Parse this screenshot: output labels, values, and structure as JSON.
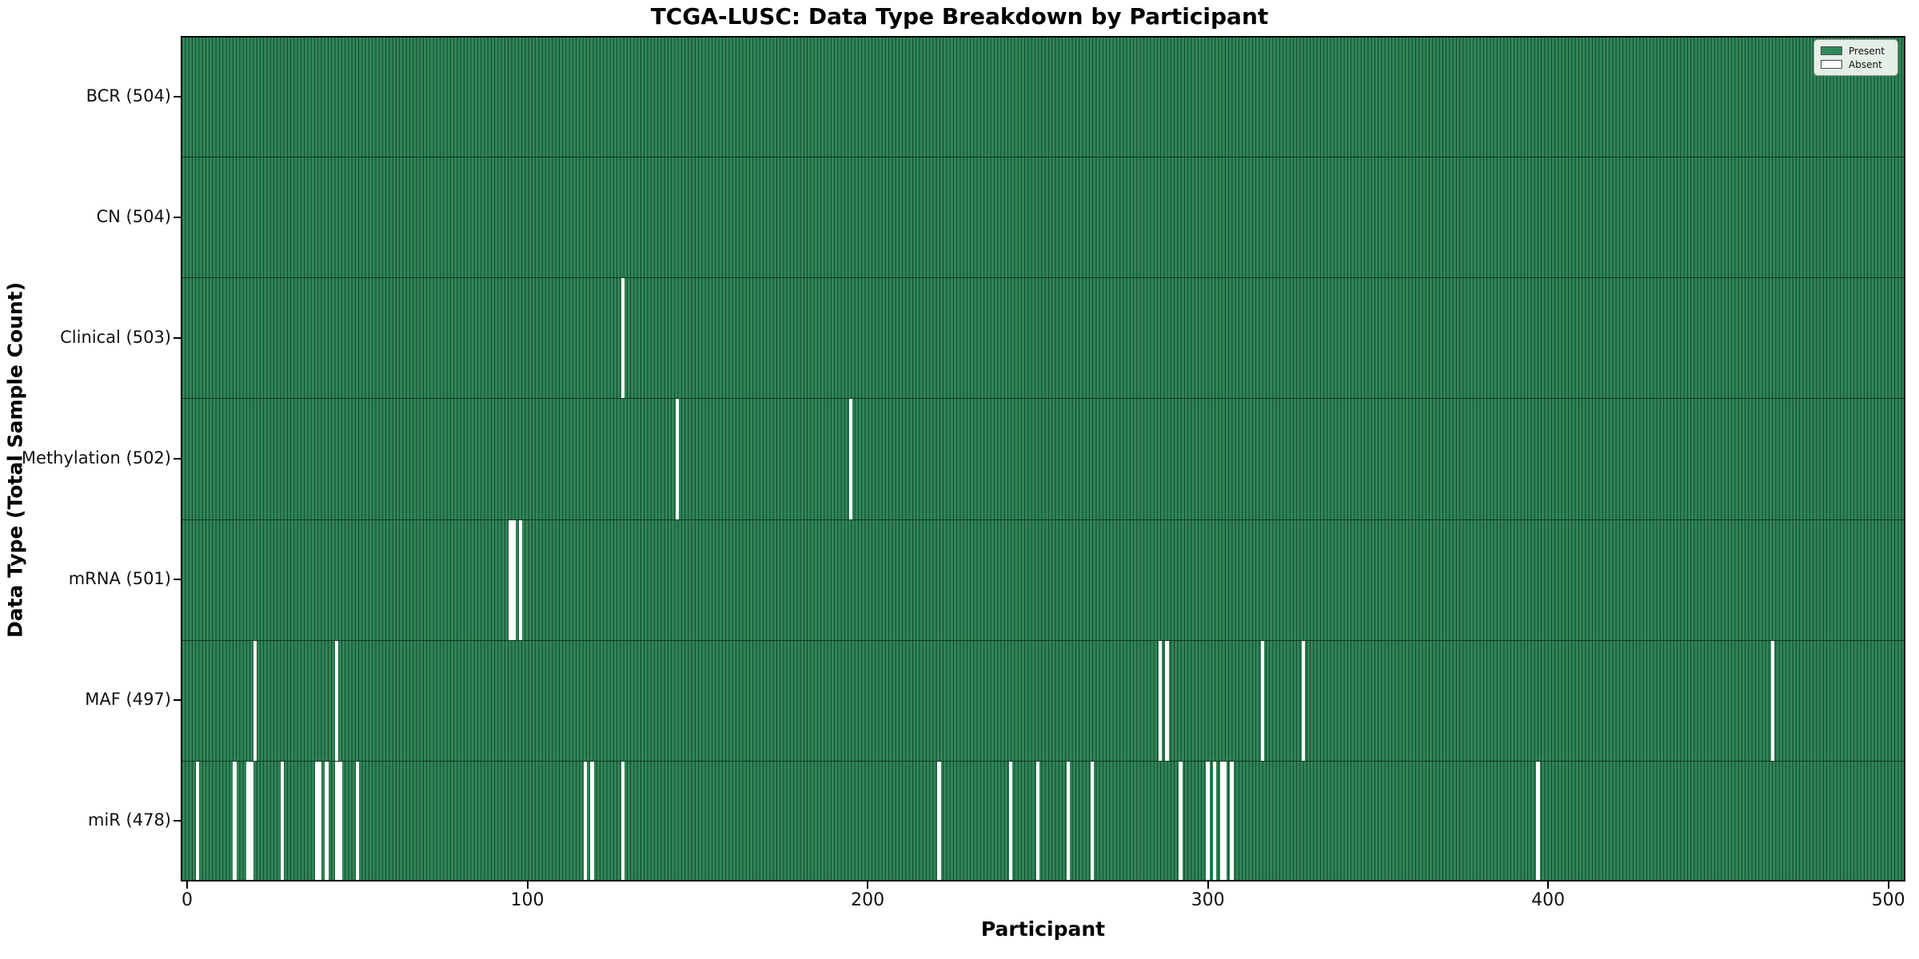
{
  "chart_data": {
    "type": "heatmap",
    "title": "TCGA-LUSC: Data Type Breakdown by Participant",
    "xlabel": "Participant",
    "ylabel": "Data Type (Total Sample Count)",
    "n_participants": 504,
    "x_ticks": [
      0,
      100,
      200,
      300,
      400,
      500
    ],
    "xlim": [
      0,
      504
    ],
    "grid": false,
    "legend_position": "upper right",
    "legend": [
      {
        "label": "Present",
        "color": "#2e8b57"
      },
      {
        "label": "Absent",
        "color": "#ffffff"
      }
    ],
    "colors": {
      "present": "#2f8757",
      "absent": "#ffffff",
      "bar_edge": "#16402a"
    },
    "rows": [
      {
        "label": "BCR (504)",
        "name": "BCR",
        "count": 504,
        "absent": []
      },
      {
        "label": "CN (504)",
        "name": "CN",
        "count": 504,
        "absent": []
      },
      {
        "label": "Clinical (503)",
        "name": "Clinical",
        "count": 503,
        "absent": [
          128
        ]
      },
      {
        "label": "Methylation (502)",
        "name": "Methylation",
        "count": 502,
        "absent": [
          144,
          195
        ]
      },
      {
        "label": "mRNA (501)",
        "name": "mRNA",
        "count": 501,
        "absent": [
          95,
          96,
          98
        ]
      },
      {
        "label": "MAF (497)",
        "name": "MAF",
        "count": 497,
        "absent": [
          20,
          44,
          286,
          288,
          316,
          328,
          466
        ]
      },
      {
        "label": "miR (478)",
        "name": "miR",
        "count": 478,
        "absent": [
          3,
          14,
          18,
          19,
          28,
          38,
          39,
          41,
          44,
          45,
          50,
          117,
          119,
          128,
          221,
          242,
          250,
          259,
          266,
          292,
          300,
          302,
          304,
          305,
          307,
          397
        ]
      }
    ]
  }
}
